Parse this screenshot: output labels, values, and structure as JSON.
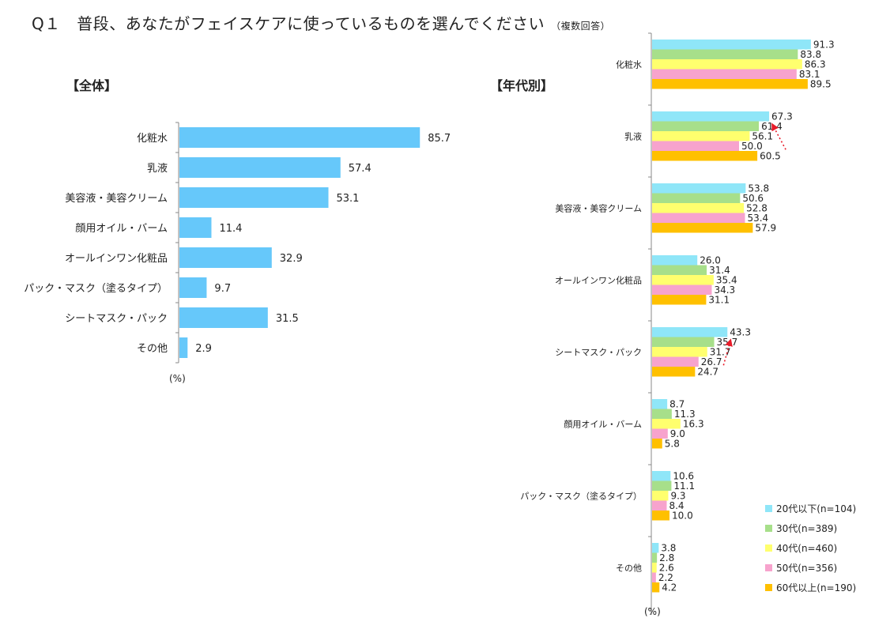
{
  "title": "Q１　普段、あなたがフェイスケアに使っているものを選んでください",
  "title_note": "（複数回答）",
  "chart_data": [
    {
      "type": "bar",
      "orientation": "horizontal",
      "title": "【全体】",
      "unit": "(%)",
      "categories": [
        "化粧水",
        "乳液",
        "美容液・美容クリーム",
        "顔用オイル・バーム",
        "オールインワン化粧品",
        "パック・マスク（塗るタイプ）",
        "シートマスク・パック",
        "その他"
      ],
      "values": [
        85.7,
        57.4,
        53.1,
        11.4,
        32.9,
        9.7,
        31.5,
        2.9
      ],
      "color": "#66c8fa",
      "xlim": [
        0,
        100
      ]
    },
    {
      "type": "bar",
      "orientation": "horizontal",
      "title": "【年代別】",
      "unit": "(%)",
      "categories": [
        "化粧水",
        "乳液",
        "美容液・美容クリーム",
        "オールインワン化粧品",
        "シートマスク・パック",
        "顔用オイル・バーム",
        "パック・マスク（塗るタイプ）",
        "その他"
      ],
      "series": [
        {
          "name": "20代以下(n=104)",
          "color": "#8fe6f8",
          "values": [
            91.3,
            67.3,
            53.8,
            26.0,
            43.3,
            8.7,
            10.6,
            3.8
          ]
        },
        {
          "name": "30代(n=389)",
          "color": "#a7df8a",
          "values": [
            83.8,
            61.4,
            50.6,
            31.4,
            35.7,
            11.3,
            11.1,
            2.8
          ]
        },
        {
          "name": "40代(n=460)",
          "color": "#ffff6e",
          "values": [
            86.3,
            56.1,
            52.8,
            35.4,
            31.7,
            16.3,
            9.3,
            2.6
          ]
        },
        {
          "name": "50代(n=356)",
          "color": "#f7a3cd",
          "values": [
            83.1,
            50.0,
            53.4,
            34.3,
            26.7,
            9.0,
            8.4,
            2.2
          ]
        },
        {
          "name": "60代以上(n=190)",
          "color": "#ffc000",
          "values": [
            89.5,
            60.5,
            57.9,
            31.1,
            24.7,
            5.8,
            10.0,
            4.2
          ]
        }
      ],
      "legend": "bottom-right",
      "annotations": [
        "trend-arrow-乳液",
        "trend-arrow-シートマスク・パック"
      ],
      "xlim": [
        0,
        100
      ]
    }
  ]
}
